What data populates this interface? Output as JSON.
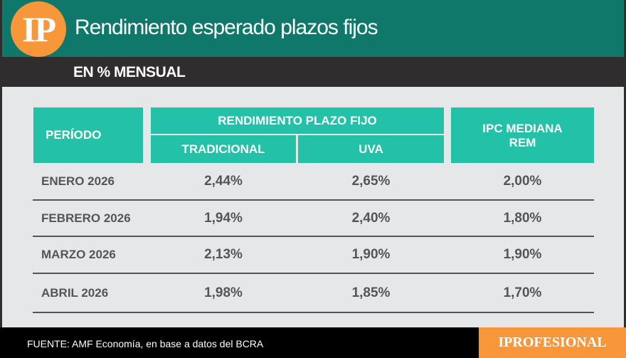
{
  "header": {
    "logo": "IP",
    "title": "Rendimiento esperado plazos fijos",
    "subtitle": "EN % MENSUAL"
  },
  "colors": {
    "header_green": "#10786a",
    "accent_teal": "#22c1a8",
    "orange": "#f7973a",
    "dark": "#2f2d2e"
  },
  "chart_data": {
    "type": "table",
    "columns": {
      "period": "PERÍODO",
      "group": "RENDIMIENTO PLAZO FIJO",
      "tradicional": "TRADICIONAL",
      "uva": "UVA",
      "ipc": "IPC MEDIANA REM"
    },
    "rows": [
      {
        "period": "ENERO 2026",
        "tradicional": "2,44%",
        "uva": "2,65%",
        "ipc": "2,00%"
      },
      {
        "period": "FEBRERO 2026",
        "tradicional": "1,94%",
        "uva": "2,40%",
        "ipc": "1,80%"
      },
      {
        "period": "MARZO 2026",
        "tradicional": "2,13%",
        "uva": "1,90%",
        "ipc": "1,90%"
      },
      {
        "period": "ABRIL 2026",
        "tradicional": "1,98%",
        "uva": "1,85%",
        "ipc": "1,70%"
      }
    ]
  },
  "footer": {
    "source": "FUENTE: AMF Economía, en base a datos del BCRA",
    "brand": "IPROFESIONAL"
  }
}
